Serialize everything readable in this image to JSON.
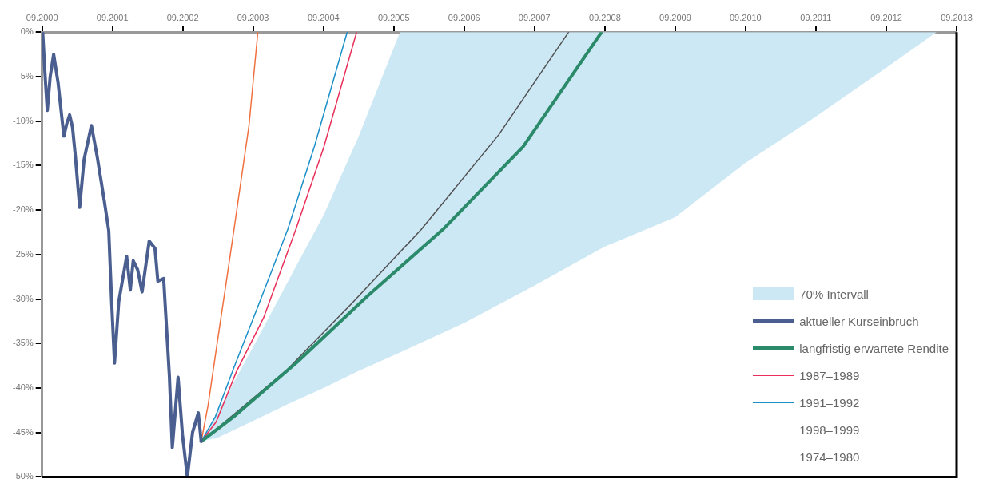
{
  "chart_data": {
    "type": "line",
    "xlim": [
      "2000-09",
      "2013-09"
    ],
    "xticks": [
      {
        "value": "2000-09",
        "label": "09.2000"
      },
      {
        "value": "2001-09",
        "label": "09.2001"
      },
      {
        "value": "2002-09",
        "label": "09.2002"
      },
      {
        "value": "2003-09",
        "label": "09.2003"
      },
      {
        "value": "2004-09",
        "label": "09.2004"
      },
      {
        "value": "2005-09",
        "label": "09.2005"
      },
      {
        "value": "2006-09",
        "label": "09.2006"
      },
      {
        "value": "2007-09",
        "label": "09.2007"
      },
      {
        "value": "2008-09",
        "label": "09.2008"
      },
      {
        "value": "2009-09",
        "label": "09.2009"
      },
      {
        "value": "2010-09",
        "label": "09.2010"
      },
      {
        "value": "2011-09",
        "label": "09.2011"
      },
      {
        "value": "2012-09",
        "label": "09.2012"
      },
      {
        "value": "2013-09",
        "label": "09.2013"
      }
    ],
    "ylim": [
      -50,
      0
    ],
    "yticks": [
      {
        "value": 0,
        "label": "0%"
      },
      {
        "value": -5,
        "label": "-5%"
      },
      {
        "value": -10,
        "label": "-10%"
      },
      {
        "value": -15,
        "label": "-15%"
      },
      {
        "value": -20,
        "label": "-20%"
      },
      {
        "value": -25,
        "label": "-25%"
      },
      {
        "value": -30,
        "label": "-30%"
      },
      {
        "value": -35,
        "label": "-35%"
      },
      {
        "value": -40,
        "label": "-40%"
      },
      {
        "value": -45,
        "label": "-45%"
      },
      {
        "value": -50,
        "label": "-50%"
      }
    ],
    "grid": false,
    "legend": "bottom right",
    "marker": "none",
    "series": [
      {
        "name": "70% Intervall",
        "type": "line",
        "color": "#cce8f4",
        "x": [
          "2002-12-06",
          "2003-03-01",
          "2003-09-01",
          "2004-03-01",
          "2004-09-01",
          "2005-03-01",
          "2005-10-03",
          "2006-09-01",
          "2007-09-01",
          "2008-09-01",
          "2009-09-01",
          "2010-09-01",
          "2011-09-01",
          "2012-09-01",
          "2013-05-20"
        ],
        "values": [
          null,
          null,
          null,
          null,
          null,
          null,
          null,
          null,
          null,
          null,
          null,
          null,
          null,
          null,
          null
        ],
        "upper": [
          -46,
          -42.7,
          -35.4,
          -28,
          -20.6,
          -11.8,
          0,
          0,
          0,
          0,
          0,
          0,
          0,
          0,
          0
        ],
        "lower": [
          -46,
          -45.6,
          -43.7,
          -41.8,
          -40,
          -38.1,
          -36,
          -32.7,
          -28.5,
          -24.1,
          -20.8,
          -14.7,
          -9.5,
          -4,
          0
        ]
      },
      {
        "name": "aktueller Kurseinbruch",
        "type": "line",
        "color": "#4a5f8f",
        "x": [
          "2000-09-04",
          "2000-09-16",
          "2000-09-28",
          "2000-10-13",
          "2000-10-31",
          "2000-11-23",
          "2000-12-23",
          "2001-01-07",
          "2001-01-22",
          "2001-02-06",
          "2001-02-21",
          "2001-03-15",
          "2001-04-07",
          "2001-05-15",
          "2001-06-14",
          "2001-07-21",
          "2001-08-13",
          "2001-08-28",
          "2001-09-12",
          "2001-10-04",
          "2001-11-14",
          "2001-12-03",
          "2001-12-18",
          "2002-01-10",
          "2002-02-02",
          "2002-03-11",
          "2002-04-10",
          "2002-04-25",
          "2002-05-25",
          "2002-06-24",
          "2002-07-09",
          "2002-08-08",
          "2002-08-31",
          "2002-09-25",
          "2002-10-22",
          "2002-11-21",
          "2002-12-06"
        ],
        "values": [
          0,
          -4.7,
          -8.8,
          -5,
          -2.5,
          -5.7,
          -11.7,
          -10.3,
          -9.3,
          -10.7,
          -14,
          -19.7,
          -14.3,
          -10.5,
          -14,
          -19,
          -22.3,
          -30.3,
          -37.2,
          -30.3,
          -25.2,
          -29,
          -25.7,
          -26.7,
          -29.2,
          -23.5,
          -24.3,
          -28,
          -27.7,
          -38.7,
          -46.7,
          -38.8,
          -45.3,
          -50,
          -45,
          -42.8,
          -46
        ]
      },
      {
        "name": "langfristig erwartete Rendite",
        "type": "line",
        "color": "#2a8a6a",
        "x": [
          "2002-12-06",
          "2003-05-25",
          "2004-04-22",
          "2005-04-21",
          "2006-05-13",
          "2007-07-04",
          "2008-08-15"
        ],
        "values": [
          -46,
          -43.2,
          -37,
          -29.6,
          -22.2,
          -12.9,
          0
        ]
      },
      {
        "name": "1987–1989",
        "type": "line",
        "color": "#e8305a",
        "x": [
          "2002-12-06",
          "2003-02-22",
          "2003-06-06",
          "2003-10-26",
          "2004-04-10",
          "2004-09-03",
          "2005-02-20"
        ],
        "values": [
          -46,
          -43.8,
          -38.2,
          -32.1,
          -22.2,
          -12.9,
          0
        ]
      },
      {
        "name": "1991–1992",
        "type": "line",
        "color": "#1a8fc8",
        "x": [
          "2002-12-06",
          "2003-02-18",
          "2003-05-25",
          "2003-09-27",
          "2004-02-28",
          "2004-07-15",
          "2005-01-02"
        ],
        "values": [
          -46,
          -43.2,
          -37.7,
          -30.8,
          -22.2,
          -12.9,
          0
        ]
      },
      {
        "name": "1998–1999",
        "type": "line",
        "color": "#f07040",
        "x": [
          "2002-12-06",
          "2003-01-11",
          "2003-03-02",
          "2003-04-13",
          "2003-05-25",
          "2003-08-11",
          "2003-09-26"
        ],
        "values": [
          -46,
          -41.9,
          -34.5,
          -28.4,
          -22.2,
          -10.5,
          0
        ]
      },
      {
        "name": "1974–1980",
        "type": "line",
        "color": "#505050",
        "x": [
          "2002-12-06",
          "2003-05-12",
          "2004-02-27",
          "2005-01-26",
          "2006-01-21",
          "2007-03-01",
          "2008-02-26"
        ],
        "values": [
          -46,
          -43.2,
          -37.9,
          -30.5,
          -22.2,
          -11.5,
          0
        ]
      }
    ]
  }
}
